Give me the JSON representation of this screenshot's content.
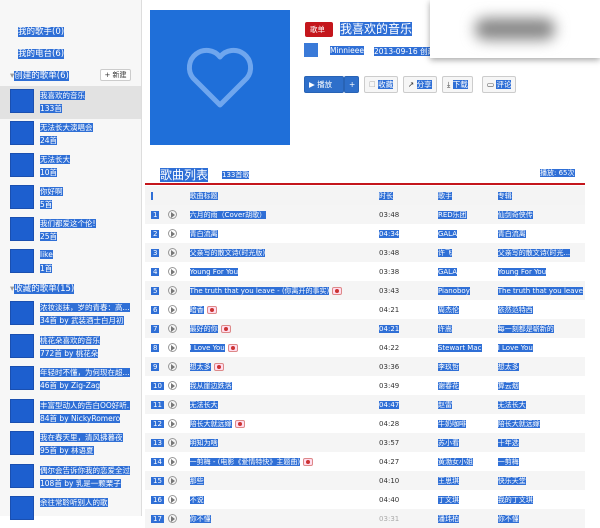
{
  "sidebar": {
    "my_singers": "我的歌手(0)",
    "my_radio": "我的电台(6)",
    "created_header": "创建的歌单(6)",
    "new_button": "+ 新建",
    "created": [
      {
        "title": "我喜欢的音乐",
        "count": "133首"
      },
      {
        "title": "无法长大演唱会",
        "count": "24首"
      },
      {
        "title": "无法长大",
        "count": "10首"
      },
      {
        "title": "你好啊",
        "count": "5首"
      },
      {
        "title": "我们都爱这个伦!",
        "count": "25首"
      },
      {
        "title": "like",
        "count": "1首"
      }
    ],
    "collected_header": "收藏的歌单(15)",
    "collected": [
      {
        "title": "浓妆淡抹，岁的青春：高...",
        "count": "34首 by 武装酒士白月初"
      },
      {
        "title": "桃花朵喜欢的音乐",
        "count": "772首 by 桃花朵"
      },
      {
        "title": "年轻时不懂，为何现在超...",
        "count": "46首 by Zig-Zag"
      },
      {
        "title": "丰富型动人的告白OO好听...",
        "count": "84首 by NickyRomero"
      },
      {
        "title": "我在春天里，清风拂暮夜",
        "count": "95首 by 林语夏"
      },
      {
        "title": "偶尔会告诉你我的恋爱全过程",
        "count": "108首 by 乳是一颗栗子"
      },
      {
        "title": "余往常聆听别人的歌",
        "count": ""
      }
    ]
  },
  "playlist": {
    "tag": "歌单",
    "title": "我喜欢的音乐",
    "owner": "Minnieee",
    "created": "2013-09-16 创建",
    "buttons": {
      "play": "▶ 播放",
      "add": "+",
      "collect": "收藏",
      "share": "分享",
      "download": "下载",
      "comment": "评论"
    }
  },
  "list": {
    "heading": "歌曲列表",
    "count": "133首歌",
    "plays": "播放: 65次",
    "columns": [
      "歌曲标题",
      "时长",
      "歌手",
      "专辑"
    ],
    "rows": [
      {
        "n": "1",
        "title": "六月的雨（Cover胡歌）",
        "dur": "03:48",
        "artist": "RED乐团",
        "album": "仙剑奇侠传",
        "mv": false
      },
      {
        "n": "2",
        "title": "青白流离",
        "dur": "04:34",
        "artist": "GALA",
        "album": "青白流离",
        "mv": false
      },
      {
        "n": "3",
        "title": "父亲写的散文诗(时光版)",
        "dur": "03:48",
        "artist": "许飞",
        "album": "父亲写的散文诗(时光...",
        "mv": false
      },
      {
        "n": "4",
        "title": "Young For You",
        "dur": "03:38",
        "artist": "GALA",
        "album": "Young For You",
        "mv": false
      },
      {
        "n": "5",
        "title": "The truth that you leave - (你离开的事实)",
        "dur": "03:43",
        "artist": "Pianoboy",
        "album": "The truth that you leave",
        "mv": true
      },
      {
        "n": "6",
        "title": "暗香",
        "dur": "04:21",
        "artist": "周杰伦",
        "album": "依然范特西",
        "mv": true
      },
      {
        "n": "7",
        "title": "最好的你",
        "dur": "04:21",
        "artist": "许嵩",
        "album": "每一刻都是崭新的",
        "mv": true
      },
      {
        "n": "8",
        "title": "I Love You",
        "dur": "04:22",
        "artist": "Stewart Mac",
        "album": "I Love You",
        "mv": true
      },
      {
        "n": "9",
        "title": "想太多",
        "dur": "03:36",
        "artist": "李玖哲",
        "album": "想太多",
        "mv": true
      },
      {
        "n": "10",
        "title": "我从崖边跌落",
        "dur": "03:49",
        "artist": "谢春花",
        "album": "算云烟",
        "mv": false
      },
      {
        "n": "11",
        "title": "无法长大",
        "dur": "04:47",
        "artist": "赵雷",
        "album": "无法长大",
        "mv": false
      },
      {
        "n": "12",
        "title": "陪长大就远嫁",
        "dur": "04:28",
        "artist": "牛奶咖啡",
        "album": "陪长大就远嫁",
        "mv": true
      },
      {
        "n": "13",
        "title": "明知为啥",
        "dur": "03:57",
        "artist": "苏小看",
        "album": "十年选",
        "mv": false
      },
      {
        "n": "14",
        "title": "一剪梅 - (电影《爱情特快》主题曲)",
        "dur": "04:27",
        "artist": "黄渤女小姐",
        "album": "一剪梅",
        "mv": true
      },
      {
        "n": "15",
        "title": "那些",
        "dur": "04:10",
        "artist": "王思琪",
        "album": "快乐天堂",
        "mv": false
      },
      {
        "n": "16",
        "title": "不说",
        "dur": "04:40",
        "artist": "丁文琪",
        "album": "我的丁文琪",
        "mv": false
      },
      {
        "n": "17",
        "title": "你不懂",
        "dur": "03:31",
        "artist": "潘玮柏",
        "album": "你不懂",
        "mv": false
      }
    ]
  },
  "colors": {
    "selection": "#2f6fd6",
    "accent": "#c4161c",
    "cover": "#1f6fd9"
  }
}
